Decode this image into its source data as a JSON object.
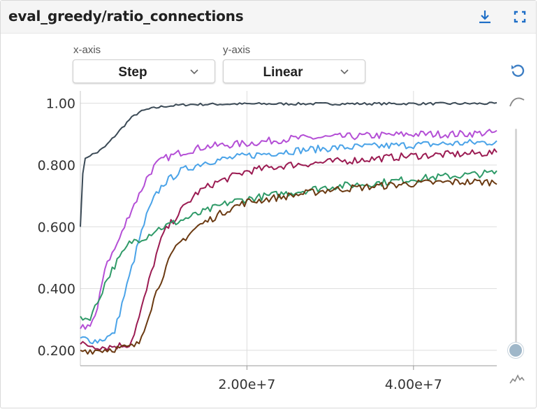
{
  "header": {
    "title": "eval_greedy/ratio_connections",
    "download_icon": "download-icon",
    "fullscreen_icon": "fullscreen-icon"
  },
  "controls": {
    "xaxis_caption": "x-axis",
    "xaxis_value": "Step",
    "yaxis_caption": "y-axis",
    "yaxis_value": "Linear",
    "reset_icon": "reset-icon",
    "smooth_icon": "smooth-curve-icon",
    "raw_icon": "raw-curve-icon",
    "smoothing_level": 0
  },
  "chart_data": {
    "type": "line",
    "xlim": [
      0,
      50000000
    ],
    "ylim": [
      0.15,
      1.04
    ],
    "x_ticks": [
      20000000,
      40000000
    ],
    "x_tick_labels": [
      "2.00e+7",
      "4.00e+7"
    ],
    "y_ticks": [
      0.2,
      0.4,
      0.6,
      0.8,
      1.0
    ],
    "y_tick_labels": [
      "0.200",
      "0.400",
      "0.600",
      "0.800",
      "1.00"
    ],
    "grid": true,
    "series": [
      {
        "color": "#3b4a56",
        "points": [
          [
            0,
            0.6
          ],
          [
            300000,
            0.78
          ],
          [
            600000,
            0.82
          ],
          [
            1000000,
            0.83
          ],
          [
            2000000,
            0.84
          ],
          [
            3000000,
            0.86
          ],
          [
            4000000,
            0.89
          ],
          [
            5000000,
            0.92
          ],
          [
            6000000,
            0.95
          ],
          [
            7000000,
            0.97
          ],
          [
            8000000,
            0.98
          ],
          [
            10000000,
            0.99
          ],
          [
            13000000,
            0.996
          ],
          [
            20000000,
            0.998
          ],
          [
            50000000,
            0.999
          ]
        ]
      },
      {
        "color": "#b44fd6",
        "points": [
          [
            0,
            0.27
          ],
          [
            1000000,
            0.28
          ],
          [
            2000000,
            0.32
          ],
          [
            2500000,
            0.4
          ],
          [
            3000000,
            0.48
          ],
          [
            4000000,
            0.52
          ],
          [
            5000000,
            0.58
          ],
          [
            6000000,
            0.65
          ],
          [
            7000000,
            0.7
          ],
          [
            8000000,
            0.76
          ],
          [
            9000000,
            0.8
          ],
          [
            10000000,
            0.82
          ],
          [
            12000000,
            0.84
          ],
          [
            15000000,
            0.86
          ],
          [
            20000000,
            0.87
          ],
          [
            25000000,
            0.885
          ],
          [
            30000000,
            0.89
          ],
          [
            35000000,
            0.895
          ],
          [
            40000000,
            0.9
          ],
          [
            45000000,
            0.9
          ],
          [
            50000000,
            0.905
          ]
        ]
      },
      {
        "color": "#4aa3e8",
        "points": [
          [
            0,
            0.24
          ],
          [
            2000000,
            0.23
          ],
          [
            4000000,
            0.25
          ],
          [
            5000000,
            0.35
          ],
          [
            6000000,
            0.45
          ],
          [
            7000000,
            0.55
          ],
          [
            8000000,
            0.64
          ],
          [
            9000000,
            0.7
          ],
          [
            10000000,
            0.74
          ],
          [
            12000000,
            0.78
          ],
          [
            15000000,
            0.81
          ],
          [
            20000000,
            0.83
          ],
          [
            25000000,
            0.845
          ],
          [
            30000000,
            0.855
          ],
          [
            35000000,
            0.86
          ],
          [
            40000000,
            0.865
          ],
          [
            45000000,
            0.87
          ],
          [
            50000000,
            0.875
          ]
        ]
      },
      {
        "color": "#9b1b52",
        "points": [
          [
            0,
            0.22
          ],
          [
            3000000,
            0.21
          ],
          [
            6000000,
            0.22
          ],
          [
            7000000,
            0.3
          ],
          [
            8000000,
            0.4
          ],
          [
            9000000,
            0.5
          ],
          [
            10000000,
            0.58
          ],
          [
            12000000,
            0.65
          ],
          [
            14000000,
            0.71
          ],
          [
            16000000,
            0.74
          ],
          [
            18000000,
            0.76
          ],
          [
            20000000,
            0.78
          ],
          [
            25000000,
            0.8
          ],
          [
            30000000,
            0.81
          ],
          [
            35000000,
            0.82
          ],
          [
            40000000,
            0.83
          ],
          [
            45000000,
            0.835
          ],
          [
            50000000,
            0.84
          ]
        ]
      },
      {
        "color": "#2f9a68",
        "points": [
          [
            0,
            0.31
          ],
          [
            1000000,
            0.3
          ],
          [
            2000000,
            0.35
          ],
          [
            3000000,
            0.42
          ],
          [
            4000000,
            0.47
          ],
          [
            5000000,
            0.51
          ],
          [
            6000000,
            0.55
          ],
          [
            7000000,
            0.56
          ],
          [
            8000000,
            0.57
          ],
          [
            9000000,
            0.59
          ],
          [
            10000000,
            0.6
          ],
          [
            12000000,
            0.62
          ],
          [
            14000000,
            0.64
          ],
          [
            16000000,
            0.66
          ],
          [
            18000000,
            0.68
          ],
          [
            20000000,
            0.69
          ],
          [
            25000000,
            0.71
          ],
          [
            30000000,
            0.73
          ],
          [
            35000000,
            0.74
          ],
          [
            40000000,
            0.755
          ],
          [
            45000000,
            0.765
          ],
          [
            50000000,
            0.775
          ]
        ]
      },
      {
        "color": "#6b3a12",
        "points": [
          [
            0,
            0.2
          ],
          [
            2000000,
            0.2
          ],
          [
            6000000,
            0.21
          ],
          [
            7000000,
            0.22
          ],
          [
            8000000,
            0.3
          ],
          [
            9000000,
            0.38
          ],
          [
            10000000,
            0.45
          ],
          [
            11000000,
            0.51
          ],
          [
            12000000,
            0.55
          ],
          [
            14000000,
            0.6
          ],
          [
            16000000,
            0.63
          ],
          [
            18000000,
            0.66
          ],
          [
            20000000,
            0.68
          ],
          [
            25000000,
            0.7
          ],
          [
            30000000,
            0.72
          ],
          [
            35000000,
            0.73
          ],
          [
            40000000,
            0.74
          ],
          [
            45000000,
            0.745
          ],
          [
            50000000,
            0.745
          ]
        ]
      }
    ]
  }
}
